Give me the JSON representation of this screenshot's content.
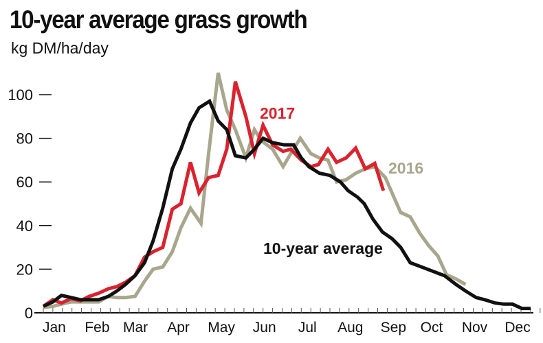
{
  "chart_data": {
    "type": "line",
    "title": "10-year average grass growth",
    "subtitle": "kg DM/ha/day",
    "xlabel": "",
    "ylabel": "",
    "ylim": [
      0,
      110
    ],
    "yticks": [
      0,
      20,
      40,
      60,
      80,
      100
    ],
    "xunit": "week",
    "xlim": [
      1,
      52
    ],
    "xticks": [
      {
        "label": "Jan",
        "week": 2
      },
      {
        "label": "Feb",
        "week": 6.5
      },
      {
        "label": "Mar",
        "week": 10.5
      },
      {
        "label": "Apr",
        "week": 15
      },
      {
        "label": "May",
        "week": 19.5
      },
      {
        "label": "Jun",
        "week": 24
      },
      {
        "label": "Jul",
        "week": 28.5
      },
      {
        "label": "Aug",
        "week": 33
      },
      {
        "label": "Sep",
        "week": 37.5
      },
      {
        "label": "Oct",
        "week": 41.5
      },
      {
        "label": "Nov",
        "week": 46
      },
      {
        "label": "Dec",
        "week": 50.5
      }
    ],
    "grid": false,
    "series": [
      {
        "name": "10-year average",
        "color": "#111111",
        "x": [
          1,
          2,
          2.9,
          3.9,
          4.9,
          5.8,
          6.8,
          7.8,
          8.7,
          9.6,
          10.6,
          11.6,
          12.5,
          13.5,
          14.5,
          15.4,
          16.4,
          17.3,
          18.4,
          19.3,
          20.2,
          21.1,
          22.2,
          23.1,
          24,
          25,
          26.2,
          27.2,
          28,
          28.8,
          29.9,
          31,
          32.1,
          32.9,
          33.9,
          34.6,
          35.5,
          36.5,
          37.5,
          38.4,
          39.4,
          40.6,
          41.8,
          43,
          44.2,
          45.2,
          46.3,
          47.2,
          48.3,
          49.2,
          50.1,
          51.1,
          52
        ],
        "y": [
          3,
          5,
          8,
          7,
          6,
          6,
          6,
          7.5,
          10,
          13,
          17,
          23,
          33,
          48,
          66,
          75,
          87,
          94,
          97,
          88,
          84,
          72,
          71,
          75,
          80,
          78,
          77,
          77,
          71,
          67,
          64,
          63,
          60,
          56,
          53,
          50,
          43,
          37,
          34,
          30,
          23,
          21,
          19,
          17,
          13,
          10,
          7,
          6,
          4.5,
          4,
          4,
          2,
          2
        ]
      },
      {
        "name": "2017",
        "color": "#d9232e",
        "x": [
          1,
          2,
          2.9,
          3.9,
          4.9,
          5.8,
          6.8,
          7.8,
          8.7,
          9.6,
          10.6,
          11.6,
          12.5,
          13.5,
          14.5,
          15.4,
          16.4,
          17.3,
          18.3,
          19.3,
          20.2,
          21.1,
          22.2,
          23.1,
          24,
          25,
          26.1,
          26.9,
          28,
          29,
          29.8,
          30.8,
          31.7,
          32.7,
          33.7,
          34.7,
          35.7,
          36.6
        ],
        "y": [
          3,
          6,
          4.5,
          6.5,
          5.5,
          7.5,
          9,
          11,
          12,
          14,
          17,
          25.5,
          28,
          30,
          47.5,
          50,
          69,
          55,
          62,
          63,
          75,
          106,
          90,
          73,
          86,
          77,
          74,
          75,
          70,
          67,
          68,
          75,
          69,
          71,
          75.5,
          66,
          68.5,
          56
        ]
      },
      {
        "name": "2016",
        "color": "#a8a68c",
        "x": [
          1,
          2,
          2.9,
          3.9,
          4.9,
          6.8,
          7.8,
          8.7,
          9.6,
          10.6,
          11.6,
          12.5,
          13.5,
          14.5,
          15.4,
          16.4,
          17.5,
          18.3,
          19.3,
          20.2,
          21.1,
          22.2,
          23.1,
          23.8,
          25,
          26.1,
          26.9,
          27.9,
          29,
          29.9,
          30.8,
          31.7,
          32.7,
          33.7,
          34.7,
          35.7,
          36.8,
          37.6,
          38.4,
          39.4,
          40.4,
          41.3,
          42.3,
          43.2,
          44.2,
          45.2
        ],
        "y": [
          2.5,
          3,
          4,
          5,
          5,
          5,
          7.5,
          7,
          7,
          7.5,
          14.5,
          20,
          21,
          28,
          39,
          48,
          41,
          73,
          110,
          93,
          84,
          71,
          84,
          79,
          75,
          67,
          73,
          80,
          73,
          71,
          70,
          60,
          61,
          64,
          66,
          67,
          62,
          54,
          46,
          44,
          36.5,
          31,
          26,
          17.5,
          15.5,
          13
        ]
      }
    ]
  }
}
